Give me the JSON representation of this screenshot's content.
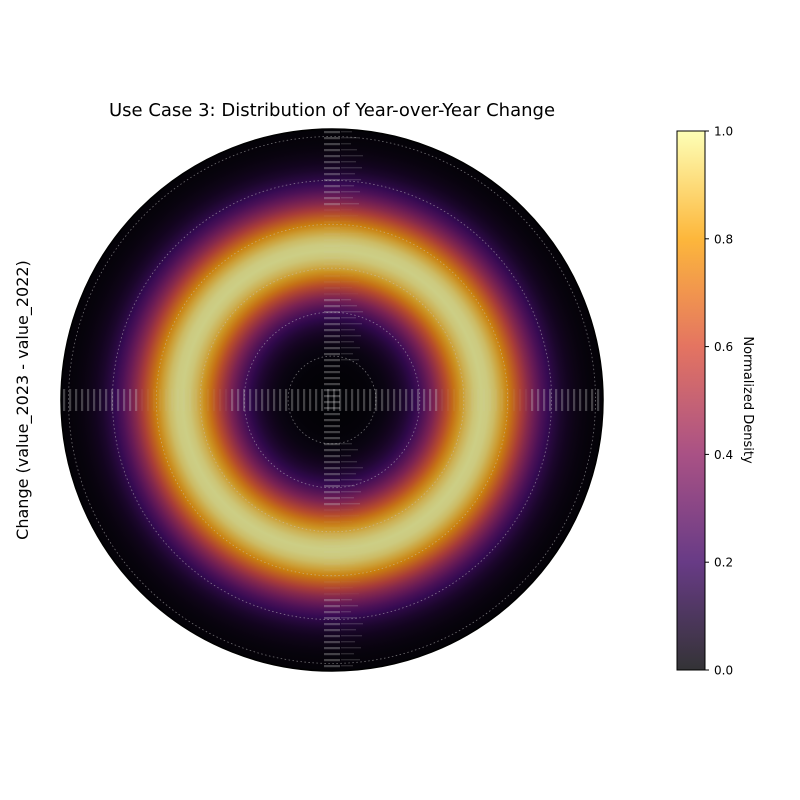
{
  "chart_data": {
    "type": "heatmap",
    "projection": "polar",
    "title": "Use Case 3: Distribution of Year-over-Year Change",
    "ylabel": "Change (value_2023 - value_2022)",
    "colorbar": {
      "label": "Normalized Density",
      "range": [
        0,
        1
      ],
      "ticks": [
        "0.0",
        "0.2",
        "0.4",
        "0.6",
        "0.8",
        "1.0"
      ],
      "colormap": "inferno",
      "colors": [
        "#000004",
        "#420a68",
        "#932667",
        "#dd513a",
        "#fca50a",
        "#fcffa4"
      ],
      "alpha": 0.8
    },
    "density_ring": {
      "peak_radius_fraction": 0.555,
      "spread_fraction": 0.135
    },
    "radial_gridlines": 6,
    "grid": true
  }
}
